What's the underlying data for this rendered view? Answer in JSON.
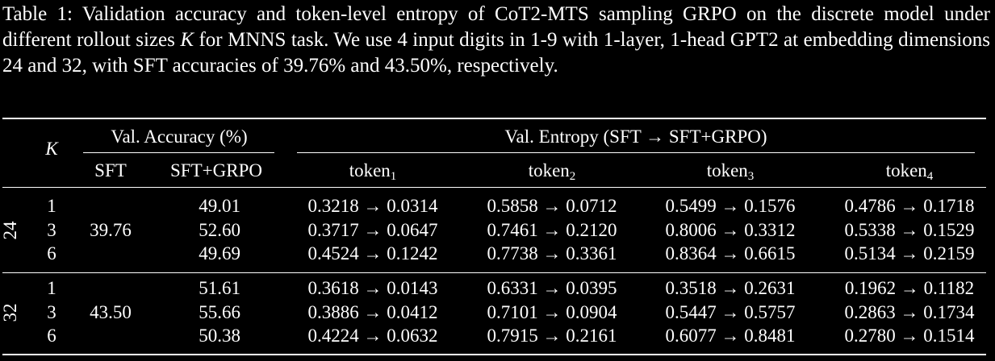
{
  "caption": {
    "label": "Table 1:",
    "text_before": "Validation accuracy and token-level entropy of CoT2-MTS sampling GRPO on the discrete model under different rollout sizes",
    "variable": "K",
    "text_after": "for MNNS task.  We use 4 input digits in 1-9 with 1-layer, 1-head GPT2 at embedding dimensions 24 and 32, with SFT accuracies of 39.76% and 43.50%, respectively."
  },
  "table": {
    "headers": {
      "k": "K",
      "accuracy_group": "Val. Accuracy (%)",
      "entropy_group": "Val. Entropy (SFT → SFT+GRPO)",
      "sft": "SFT",
      "sft_grpo": "SFT+GRPO",
      "tokens": [
        {
          "base": "token",
          "sub": "1"
        },
        {
          "base": "token",
          "sub": "2"
        },
        {
          "base": "token",
          "sub": "3"
        },
        {
          "base": "token",
          "sub": "4"
        }
      ]
    },
    "groups": [
      {
        "dim": "24",
        "sft": "39.76",
        "rows": [
          {
            "k": "1",
            "sft_grpo": "49.01",
            "entropy": [
              "0.3218 → 0.0314",
              "0.5858 → 0.0712",
              "0.5499 → 0.1576",
              "0.4786 → 0.1718"
            ]
          },
          {
            "k": "3",
            "sft_grpo": "52.60",
            "entropy": [
              "0.3717 → 0.0647",
              "0.7461 → 0.2120",
              "0.8006 → 0.3312",
              "0.5338 → 0.1529"
            ]
          },
          {
            "k": "6",
            "sft_grpo": "49.69",
            "entropy": [
              "0.4524 → 0.1242",
              "0.7738 → 0.3361",
              "0.8364 → 0.6615",
              "0.5134 → 0.2159"
            ]
          }
        ]
      },
      {
        "dim": "32",
        "sft": "43.50",
        "rows": [
          {
            "k": "1",
            "sft_grpo": "51.61",
            "entropy": [
              "0.3618 → 0.0143",
              "0.6331 → 0.0395",
              "0.3518 → 0.2631",
              "0.1962 → 0.1182"
            ]
          },
          {
            "k": "3",
            "sft_grpo": "55.66",
            "entropy": [
              "0.3886 → 0.0412",
              "0.7101 → 0.0904",
              "0.5447 → 0.5757",
              "0.2863 → 0.1734"
            ]
          },
          {
            "k": "6",
            "sft_grpo": "50.38",
            "entropy": [
              "0.4224 → 0.0632",
              "0.7915 → 0.2161",
              "0.6077 → 0.8481",
              "0.2780 → 0.1514"
            ]
          }
        ]
      }
    ]
  }
}
